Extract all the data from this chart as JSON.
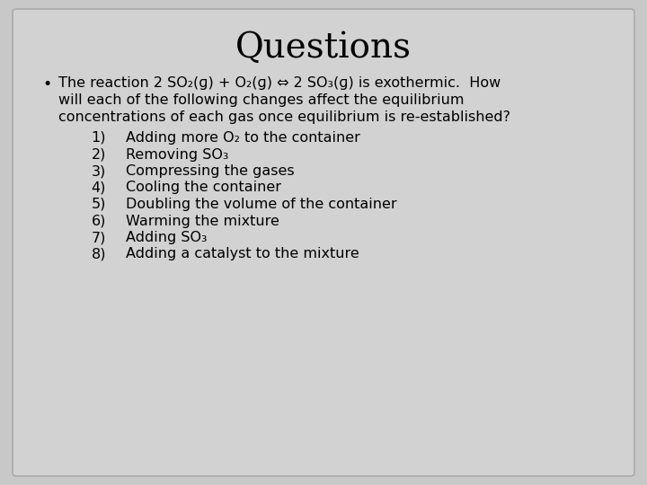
{
  "title": "Questions",
  "title_fontsize": 28,
  "body_fontsize": 11.5,
  "background_color": "#c8c8c8",
  "slide_bg": "#d2d2d2",
  "border_color": "#aaaaaa",
  "text_color": "#000000",
  "bullet": "•",
  "intro_line1": "The reaction 2 SO₂(ɡ) + O₂(ɡ) ⇔ 2 SO₃(ɡ) is exothermic.  How",
  "intro_line2": "will each of the following changes affect the equilibrium",
  "intro_line3": "concentrations of each gas once equilibrium is re-established?",
  "items": [
    "Adding more O₂ to the container",
    "Removing SO₃",
    "Compressing the gases",
    "Cooling the container",
    "Doubling the volume of the container",
    "Warming the mixture",
    "Adding SO₃",
    "Adding a catalyst to the mixture"
  ]
}
